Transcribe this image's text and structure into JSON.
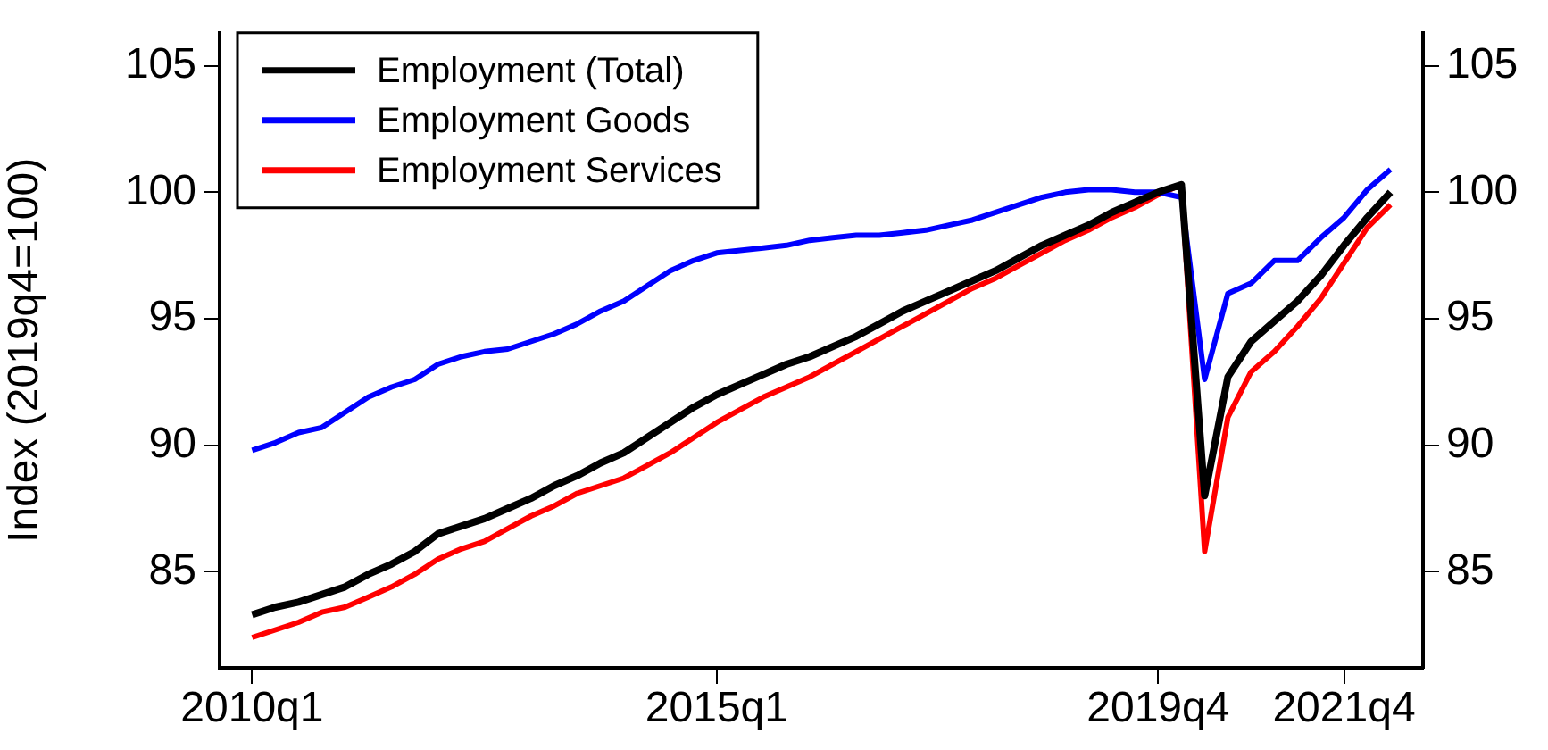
{
  "chart_data": {
    "type": "line",
    "ylabel": "Index (2019q4=100)",
    "categories": [
      "2010q1",
      null,
      null,
      null,
      null,
      null,
      null,
      null,
      null,
      null,
      null,
      null,
      null,
      null,
      null,
      null,
      null,
      null,
      null,
      null,
      "2015q1",
      null,
      null,
      null,
      null,
      null,
      null,
      null,
      null,
      null,
      null,
      null,
      null,
      null,
      null,
      null,
      null,
      null,
      null,
      "2019q4",
      null,
      null,
      null,
      null,
      null,
      null,
      null,
      "2021q4",
      null,
      null
    ],
    "series": [
      {
        "name": "Employment (Total)",
        "color": "#000000",
        "values": [
          83.3,
          83.6,
          83.8,
          84.1,
          84.4,
          84.9,
          85.3,
          85.8,
          86.5,
          86.8,
          87.1,
          87.5,
          87.9,
          88.4,
          88.8,
          89.3,
          89.7,
          90.3,
          90.9,
          91.5,
          92.0,
          92.4,
          92.8,
          93.2,
          93.5,
          93.9,
          94.3,
          94.8,
          95.3,
          95.7,
          96.1,
          96.5,
          96.9,
          97.4,
          97.9,
          98.3,
          98.7,
          99.2,
          99.6,
          100.0,
          100.3,
          88.0,
          92.7,
          94.1,
          94.9,
          95.7,
          96.7,
          97.9,
          99.0,
          100.0
        ]
      },
      {
        "name": "Employment Goods",
        "color": "#0000ff",
        "values": [
          89.8,
          90.1,
          90.5,
          90.7,
          91.3,
          91.9,
          92.3,
          92.6,
          93.2,
          93.5,
          93.7,
          93.8,
          94.1,
          94.4,
          94.8,
          95.3,
          95.7,
          96.3,
          96.9,
          97.3,
          97.6,
          97.7,
          97.8,
          97.9,
          98.1,
          98.2,
          98.3,
          98.3,
          98.4,
          98.5,
          98.7,
          98.9,
          99.2,
          99.5,
          99.8,
          100.0,
          100.1,
          100.1,
          100.0,
          100.0,
          99.8,
          92.6,
          96.0,
          96.4,
          97.3,
          97.3,
          98.2,
          99.0,
          100.1,
          100.9
        ]
      },
      {
        "name": "Employment Services",
        "color": "#ff0000",
        "values": [
          82.4,
          82.7,
          83.0,
          83.4,
          83.6,
          84.0,
          84.4,
          84.9,
          85.5,
          85.9,
          86.2,
          86.7,
          87.2,
          87.6,
          88.1,
          88.4,
          88.7,
          89.2,
          89.7,
          90.3,
          90.9,
          91.4,
          91.9,
          92.3,
          92.7,
          93.2,
          93.7,
          94.2,
          94.7,
          95.2,
          95.7,
          96.2,
          96.6,
          97.1,
          97.6,
          98.1,
          98.5,
          99.0,
          99.4,
          99.9,
          100.3,
          85.8,
          91.1,
          92.9,
          93.7,
          94.7,
          95.8,
          97.2,
          98.6,
          99.5
        ]
      }
    ],
    "ylim": [
      81.2,
      106.3
    ],
    "yticks": [
      85,
      90,
      95,
      100,
      105
    ],
    "y2lim": [
      81.2,
      106.3
    ],
    "y2ticks": [
      85,
      90,
      95,
      100,
      105
    ],
    "grid": false,
    "legend": "top left",
    "marker": "none",
    "line_style": "solid"
  }
}
